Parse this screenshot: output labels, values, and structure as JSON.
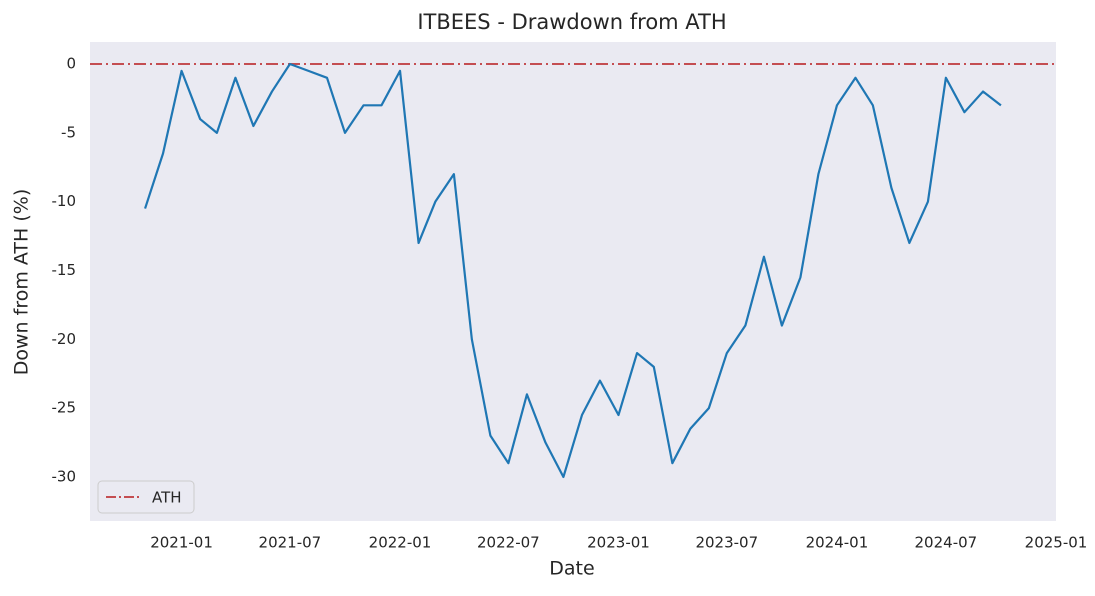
{
  "chart_data": {
    "type": "line",
    "title": "ITBEES - Drawdown from ATH",
    "x_label": "Date",
    "y_label": "Down from ATH (%)",
    "x": [
      "2020-11",
      "2020-12",
      "2021-01",
      "2021-02",
      "2021-03",
      "2021-04",
      "2021-05",
      "2021-06",
      "2021-07",
      "2021-08",
      "2021-09",
      "2021-10",
      "2021-11",
      "2021-12",
      "2022-01",
      "2022-02",
      "2022-03",
      "2022-04",
      "2022-05",
      "2022-06",
      "2022-07",
      "2022-08",
      "2022-09",
      "2022-10",
      "2022-11",
      "2022-12",
      "2023-01",
      "2023-02",
      "2023-03",
      "2023-04",
      "2023-05",
      "2023-06",
      "2023-07",
      "2023-08",
      "2023-09",
      "2023-10",
      "2023-11",
      "2023-12",
      "2024-01",
      "2024-02",
      "2024-03",
      "2024-04",
      "2024-05",
      "2024-06",
      "2024-07",
      "2024-08",
      "2024-09",
      "2024-10"
    ],
    "series": [
      {
        "name": "Drawdown",
        "color": "#1f77b4",
        "values": [
          -10.5,
          -6.5,
          -0.5,
          -4,
          -5,
          -1,
          -4.5,
          -2,
          0,
          -0.5,
          -1,
          -5,
          -3,
          -3,
          -0.5,
          -13,
          -10,
          -8,
          -20,
          -27,
          -29,
          -24,
          -27.5,
          -30,
          -25.5,
          -23,
          -25.5,
          -21,
          -22,
          -29,
          -26.5,
          -25,
          -21,
          -19,
          -14,
          -19,
          -15.5,
          -8,
          -3,
          -1,
          -3,
          -9,
          -13,
          -10,
          -1,
          -3.5,
          -2,
          -3
        ]
      }
    ],
    "reference_lines": [
      {
        "name": "ATH",
        "value": 0,
        "color": "#c44e52"
      }
    ],
    "xlim": [
      "2020-08",
      "2025-01"
    ],
    "xticks": [
      "2021-01",
      "2021-07",
      "2022-01",
      "2022-07",
      "2023-01",
      "2023-07",
      "2024-01",
      "2024-07",
      "2025-01"
    ],
    "ylim": [
      -33.2,
      1.6
    ],
    "yticks": [
      0,
      -5,
      -10,
      -15,
      -20,
      -25,
      -30
    ],
    "grid": false,
    "legend": "lower left"
  }
}
